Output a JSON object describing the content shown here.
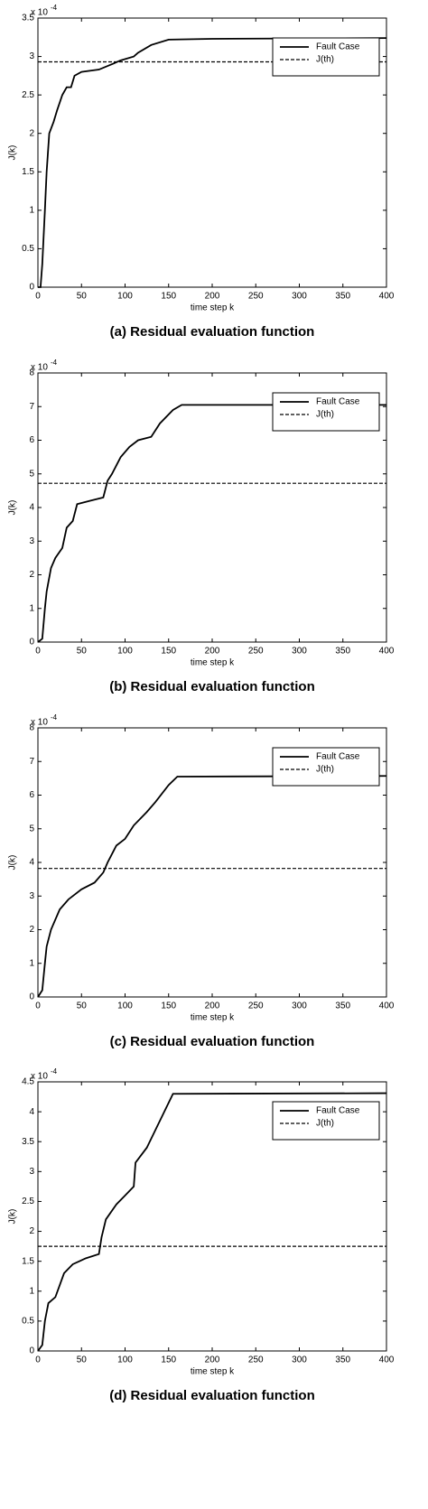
{
  "chart_data": [
    {
      "type": "line",
      "title": "(a) Residual evaluation function",
      "x_label": "time step k",
      "y_label": "J(k)",
      "y_scale_base": "x 10",
      "y_scale_exponent": "-4",
      "xlim": [
        0,
        400
      ],
      "xticks": [
        0,
        50,
        100,
        150,
        200,
        250,
        300,
        350,
        400
      ],
      "ylim": [
        0,
        3.5
      ],
      "yticks": [
        0,
        0.5,
        1,
        1.5,
        2,
        2.5,
        3,
        3.5
      ],
      "legend": "upper right",
      "series": [
        {
          "name": "Fault Case",
          "color": "#000000",
          "dash": "solid",
          "x": [
            0,
            3,
            5,
            8,
            10,
            13,
            18,
            22,
            28,
            33,
            38,
            42,
            50,
            70,
            85,
            95,
            110,
            115,
            130,
            150,
            200,
            400
          ],
          "values": [
            0,
            0,
            0.3,
            1.0,
            1.5,
            2.0,
            2.15,
            2.3,
            2.5,
            2.6,
            2.6,
            2.75,
            2.8,
            2.83,
            2.9,
            2.95,
            3.0,
            3.05,
            3.15,
            3.22,
            3.23,
            3.24
          ]
        },
        {
          "name": "J(th)",
          "color": "#000000",
          "dash": "dashed",
          "x": [
            0,
            400
          ],
          "values": [
            2.93,
            2.93
          ]
        }
      ]
    },
    {
      "type": "line",
      "title": "(b) Residual evaluation function",
      "x_label": "time step k",
      "y_label": "J(k)",
      "y_scale_base": "x 10",
      "y_scale_exponent": "-4",
      "xlim": [
        0,
        400
      ],
      "xticks": [
        0,
        50,
        100,
        150,
        200,
        250,
        300,
        350,
        400
      ],
      "ylim": [
        0,
        8
      ],
      "yticks": [
        0,
        1,
        2,
        3,
        4,
        5,
        6,
        7,
        8
      ],
      "legend": "upper right",
      "series": [
        {
          "name": "Fault Case",
          "color": "#000000",
          "dash": "solid",
          "x": [
            0,
            5,
            8,
            10,
            15,
            20,
            28,
            33,
            40,
            45,
            60,
            75,
            80,
            85,
            95,
            105,
            115,
            130,
            140,
            155,
            165,
            400
          ],
          "values": [
            0,
            0.1,
            1.0,
            1.5,
            2.2,
            2.5,
            2.8,
            3.4,
            3.6,
            4.1,
            4.2,
            4.3,
            4.8,
            5.0,
            5.5,
            5.8,
            6.0,
            6.1,
            6.5,
            6.9,
            7.05,
            7.05
          ]
        },
        {
          "name": "J(th)",
          "color": "#000000",
          "dash": "dashed",
          "x": [
            0,
            400
          ],
          "values": [
            4.72,
            4.72
          ]
        }
      ]
    },
    {
      "type": "line",
      "title": "(c) Residual evaluation function",
      "x_label": "time step k",
      "y_label": "J(k)",
      "y_scale_base": "x 10",
      "y_scale_exponent": "-4",
      "xlim": [
        0,
        400
      ],
      "xticks": [
        0,
        50,
        100,
        150,
        200,
        250,
        300,
        350,
        400
      ],
      "ylim": [
        0,
        8
      ],
      "yticks": [
        0,
        1,
        2,
        3,
        4,
        5,
        6,
        7,
        8
      ],
      "legend": "upper right",
      "series": [
        {
          "name": "Fault Case",
          "color": "#000000",
          "dash": "solid",
          "x": [
            0,
            5,
            8,
            10,
            15,
            25,
            35,
            50,
            65,
            75,
            80,
            90,
            100,
            110,
            125,
            135,
            150,
            160,
            400
          ],
          "values": [
            0,
            0.2,
            1.0,
            1.5,
            2.0,
            2.6,
            2.9,
            3.2,
            3.4,
            3.7,
            4.0,
            4.5,
            4.7,
            5.1,
            5.5,
            5.8,
            6.3,
            6.55,
            6.57
          ]
        },
        {
          "name": "J(th)",
          "color": "#000000",
          "dash": "dashed",
          "x": [
            0,
            400
          ],
          "values": [
            3.82,
            3.82
          ]
        }
      ]
    },
    {
      "type": "line",
      "title": "(d) Residual evaluation function",
      "x_label": "time step k",
      "y_label": "J(k)",
      "y_scale_base": "x 10",
      "y_scale_exponent": "-4",
      "xlim": [
        0,
        400
      ],
      "xticks": [
        0,
        50,
        100,
        150,
        200,
        250,
        300,
        350,
        400
      ],
      "ylim": [
        0,
        4.5
      ],
      "yticks": [
        0,
        0.5,
        1,
        1.5,
        2,
        2.5,
        3,
        3.5,
        4,
        4.5
      ],
      "legend": "upper right",
      "series": [
        {
          "name": "Fault Case",
          "color": "#000000",
          "dash": "solid",
          "x": [
            0,
            5,
            8,
            12,
            20,
            25,
            30,
            40,
            55,
            70,
            73,
            78,
            90,
            100,
            110,
            112,
            125,
            135,
            145,
            155,
            400
          ],
          "values": [
            0,
            0.1,
            0.5,
            0.8,
            0.9,
            1.1,
            1.3,
            1.45,
            1.55,
            1.62,
            1.9,
            2.2,
            2.45,
            2.6,
            2.75,
            3.15,
            3.4,
            3.7,
            4.0,
            4.3,
            4.31
          ]
        },
        {
          "name": "J(th)",
          "color": "#000000",
          "dash": "dashed",
          "x": [
            0,
            400
          ],
          "values": [
            1.75,
            1.75
          ]
        }
      ]
    }
  ]
}
